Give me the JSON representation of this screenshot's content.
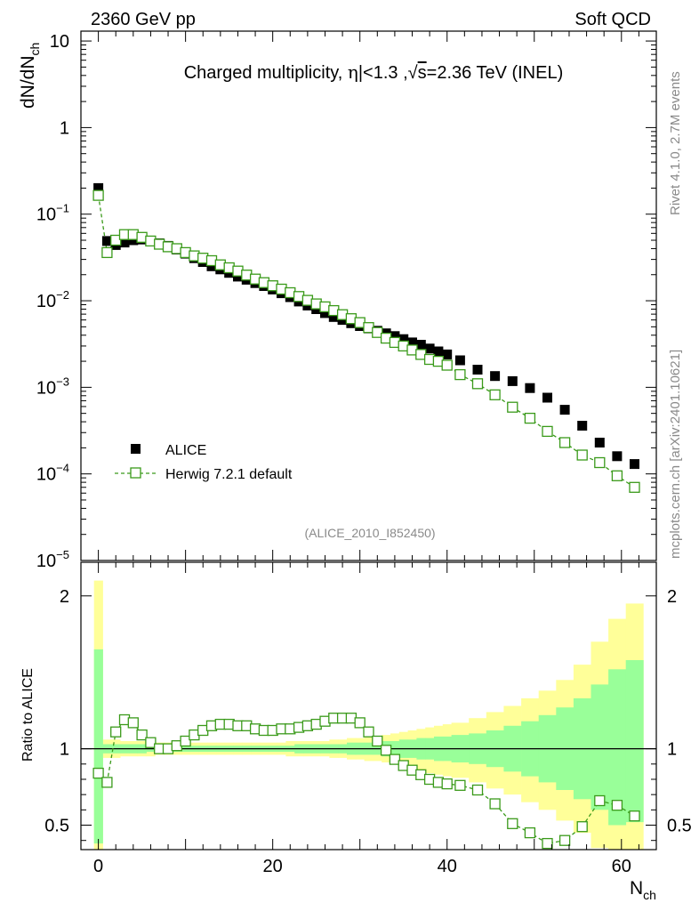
{
  "header": {
    "left": "2360 GeV pp",
    "right": "Soft QCD",
    "side_top": "Rivet 4.1.0,  2.7M events",
    "side_bottom": "mcplots.cern.ch [arXiv:2401.10621]"
  },
  "chart_data": [
    {
      "type": "scatter",
      "panel": "main",
      "title": "Charged multiplicity, |η|<1.3 ,√s=2.36 TeV (INEL)",
      "title_parts": {
        "pre": "Charged multiplicity, ",
        "eta": "η",
        "cut": "|<1.3 ,",
        "sqrt": "√",
        "s": "s",
        "post": "=2.36 TeV (INEL)"
      },
      "ylabel": {
        "base": "dN/dN",
        "sub": "ch"
      },
      "yscale": "log",
      "ylim": [
        1e-05,
        13
      ],
      "xlim": [
        -2,
        64
      ],
      "yticks": [
        {
          "v": 10,
          "m": "10",
          "e": ""
        },
        {
          "v": 1,
          "m": "1",
          "e": ""
        },
        {
          "v": 0.1,
          "m": "10",
          "e": "−1"
        },
        {
          "v": 0.01,
          "m": "10",
          "e": "−2"
        },
        {
          "v": 0.001,
          "m": "10",
          "e": "−3"
        },
        {
          "v": 0.0001,
          "m": "10",
          "e": "−4"
        },
        {
          "v": 1e-05,
          "m": "10",
          "e": "−5"
        }
      ],
      "analysis_tag": "(ALICE_2010_I852450)",
      "legend": [
        {
          "name": "ALICE",
          "marker": "filled-square",
          "color": "#000000"
        },
        {
          "name": "Herwig 7.2.1 default",
          "marker": "open-square",
          "color": "#3a9a1a"
        }
      ],
      "series": [
        {
          "name": "ALICE",
          "x": [
            0,
            1,
            2,
            3,
            4,
            5,
            6,
            7,
            8,
            9,
            10,
            11,
            12,
            13,
            14,
            15,
            16,
            17,
            18,
            19,
            20,
            21,
            22,
            23,
            24,
            25,
            26,
            27,
            28,
            29,
            30,
            31,
            32,
            33,
            34,
            35,
            36,
            37,
            38,
            39,
            40,
            41.5,
            43.5,
            45.5,
            47.5,
            49.5,
            51.5,
            53.5,
            55.5,
            57.5,
            59.5,
            61.5
          ],
          "y": [
            0.2,
            0.049,
            0.044,
            0.047,
            0.05,
            0.051,
            0.049,
            0.046,
            0.043,
            0.039,
            0.035,
            0.031,
            0.028,
            0.025,
            0.023,
            0.021,
            0.019,
            0.0175,
            0.016,
            0.0148,
            0.0135,
            0.0122,
            0.011,
            0.0098,
            0.0088,
            0.008,
            0.0072,
            0.0065,
            0.006,
            0.0055,
            0.0051,
            0.0048,
            0.0045,
            0.0042,
            0.0039,
            0.0036,
            0.0033,
            0.0031,
            0.0028,
            0.0026,
            0.0024,
            0.00205,
            0.0016,
            0.00135,
            0.00118,
            0.00098,
            0.00076,
            0.00055,
            0.00036,
            0.00023,
            0.00016,
            0.00013
          ]
        },
        {
          "name": "Herwig 7.2.1 default",
          "x": [
            0,
            1,
            2,
            3,
            4,
            5,
            6,
            7,
            8,
            9,
            10,
            11,
            12,
            13,
            14,
            15,
            16,
            17,
            18,
            19,
            20,
            21,
            22,
            23,
            24,
            25,
            26,
            27,
            28,
            29,
            30,
            31,
            32,
            33,
            34,
            35,
            36,
            37,
            38,
            39,
            40,
            41.5,
            43.5,
            45.5,
            47.5,
            49.5,
            51.5,
            53.5,
            55.5,
            57.5,
            59.5,
            61.5
          ],
          "y": [
            0.165,
            0.036,
            0.05,
            0.058,
            0.058,
            0.054,
            0.049,
            0.045,
            0.042,
            0.04,
            0.036,
            0.033,
            0.031,
            0.029,
            0.026,
            0.024,
            0.022,
            0.0198,
            0.0178,
            0.0162,
            0.0149,
            0.0136,
            0.0124,
            0.0112,
            0.0101,
            0.0092,
            0.0085,
            0.0077,
            0.0069,
            0.0062,
            0.0056,
            0.0049,
            0.0043,
            0.0037,
            0.0033,
            0.003,
            0.0027,
            0.0024,
            0.0021,
            0.002,
            0.0018,
            0.0014,
            0.0011,
            0.00082,
            0.00059,
            0.00044,
            0.00031,
            0.00023,
            0.000165,
            0.000135,
            9.5e-05,
            7e-05
          ]
        }
      ]
    },
    {
      "type": "scatter",
      "panel": "ratio",
      "ylabel": "Ratio to ALICE",
      "xlabel": {
        "base": "N",
        "sub": "ch"
      },
      "xlim": [
        -2,
        64
      ],
      "ylim": [
        0.34,
        2.22
      ],
      "xticks": [
        0,
        20,
        40,
        60
      ],
      "yticks": [
        0.5,
        1,
        2
      ],
      "bands": {
        "edges": [
          -0.5,
          0.5,
          1.5,
          2.5,
          3.5,
          4.5,
          5.5,
          6.5,
          7.5,
          8.5,
          9.5,
          10.5,
          11.5,
          12.5,
          13.5,
          14.5,
          15.5,
          16.5,
          17.5,
          18.5,
          19.5,
          20.5,
          21.5,
          22.5,
          23.5,
          24.5,
          25.5,
          26.5,
          27.5,
          28.5,
          29.5,
          30.5,
          31.5,
          32.5,
          33.5,
          34.5,
          35.5,
          36.5,
          37.5,
          38.5,
          39.5,
          40.5,
          42.5,
          44.5,
          46.5,
          48.5,
          50.5,
          52.5,
          54.5,
          56.5,
          58.5,
          60.5,
          62.5
        ],
        "yellow_up": [
          2.1,
          1.06,
          1.06,
          1.05,
          1.05,
          1.05,
          1.05,
          1.04,
          1.04,
          1.04,
          1.04,
          1.04,
          1.04,
          1.04,
          1.04,
          1.04,
          1.04,
          1.04,
          1.04,
          1.04,
          1.04,
          1.04,
          1.05,
          1.05,
          1.05,
          1.05,
          1.05,
          1.06,
          1.06,
          1.07,
          1.07,
          1.08,
          1.08,
          1.09,
          1.1,
          1.11,
          1.12,
          1.13,
          1.14,
          1.15,
          1.16,
          1.17,
          1.2,
          1.24,
          1.28,
          1.33,
          1.38,
          1.45,
          1.55,
          1.7,
          1.85,
          1.95
        ],
        "yellow_dn": [
          0.2,
          0.94,
          0.94,
          0.95,
          0.95,
          0.95,
          0.95,
          0.96,
          0.96,
          0.96,
          0.96,
          0.96,
          0.96,
          0.96,
          0.96,
          0.96,
          0.96,
          0.96,
          0.96,
          0.96,
          0.96,
          0.96,
          0.95,
          0.95,
          0.95,
          0.95,
          0.95,
          0.94,
          0.94,
          0.93,
          0.93,
          0.92,
          0.92,
          0.91,
          0.9,
          0.88,
          0.87,
          0.85,
          0.84,
          0.83,
          0.82,
          0.81,
          0.78,
          0.74,
          0.7,
          0.65,
          0.6,
          0.53,
          0.45,
          0.35,
          0.2,
          0.1
        ],
        "green_up": [
          1.65,
          1.03,
          1.03,
          1.03,
          1.03,
          1.03,
          1.02,
          1.02,
          1.02,
          1.02,
          1.02,
          1.02,
          1.02,
          1.02,
          1.02,
          1.02,
          1.02,
          1.02,
          1.02,
          1.02,
          1.02,
          1.02,
          1.02,
          1.03,
          1.03,
          1.03,
          1.03,
          1.03,
          1.03,
          1.04,
          1.04,
          1.04,
          1.04,
          1.05,
          1.05,
          1.06,
          1.06,
          1.07,
          1.07,
          1.08,
          1.08,
          1.09,
          1.1,
          1.12,
          1.15,
          1.18,
          1.22,
          1.27,
          1.33,
          1.42,
          1.52,
          1.58
        ],
        "green_dn": [
          0.38,
          0.97,
          0.97,
          0.97,
          0.97,
          0.97,
          0.98,
          0.98,
          0.98,
          0.98,
          0.98,
          0.98,
          0.98,
          0.98,
          0.98,
          0.98,
          0.98,
          0.98,
          0.98,
          0.98,
          0.98,
          0.98,
          0.98,
          0.97,
          0.97,
          0.97,
          0.97,
          0.97,
          0.97,
          0.96,
          0.96,
          0.96,
          0.96,
          0.95,
          0.95,
          0.94,
          0.94,
          0.93,
          0.93,
          0.92,
          0.92,
          0.91,
          0.9,
          0.88,
          0.85,
          0.82,
          0.78,
          0.73,
          0.67,
          0.6,
          0.5,
          0.52
        ]
      },
      "series": [
        {
          "name": "Herwig 7.2.1 default",
          "x": [
            0,
            1,
            2,
            3,
            4,
            5,
            6,
            7,
            8,
            9,
            10,
            11,
            12,
            13,
            14,
            15,
            16,
            17,
            18,
            19,
            20,
            21,
            22,
            23,
            24,
            25,
            26,
            27,
            28,
            29,
            30,
            31,
            32,
            33,
            34,
            35,
            36,
            37,
            38,
            39,
            40,
            41.5,
            43.5,
            45.5,
            47.5,
            49.5,
            51.5,
            53.5,
            55.5,
            57.5,
            59.5,
            61.5
          ],
          "y": [
            0.84,
            0.78,
            1.11,
            1.19,
            1.17,
            1.09,
            1.04,
            1.0,
            1.0,
            1.02,
            1.05,
            1.09,
            1.12,
            1.15,
            1.16,
            1.16,
            1.15,
            1.15,
            1.13,
            1.12,
            1.12,
            1.13,
            1.13,
            1.14,
            1.15,
            1.16,
            1.18,
            1.2,
            1.2,
            1.2,
            1.17,
            1.11,
            1.05,
            0.99,
            0.93,
            0.89,
            0.86,
            0.83,
            0.8,
            0.78,
            0.77,
            0.76,
            0.73,
            0.64,
            0.51,
            0.45,
            0.38,
            0.4,
            0.49,
            0.66,
            0.63,
            0.56
          ]
        }
      ]
    }
  ]
}
